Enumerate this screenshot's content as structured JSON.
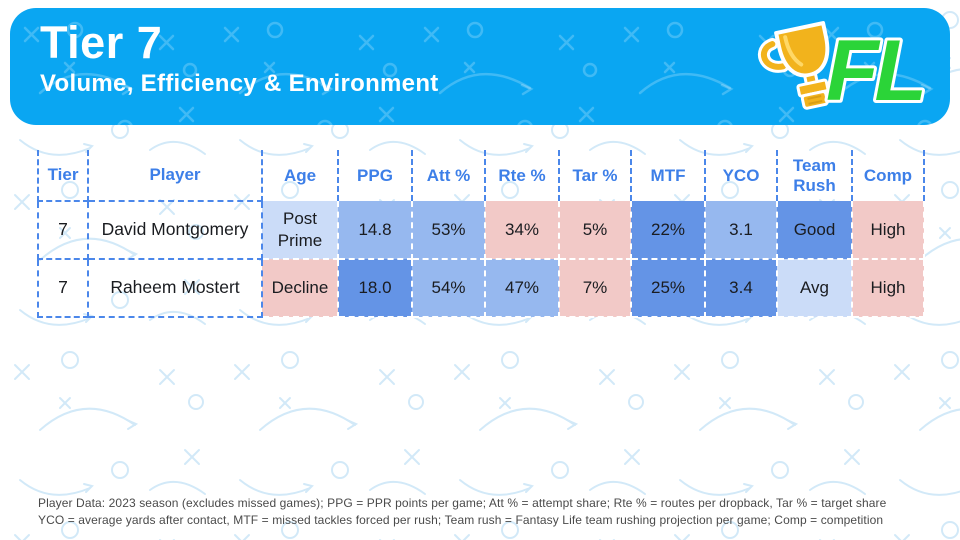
{
  "header": {
    "title": "Tier 7",
    "subtitle": "Volume, Efficiency & Environment",
    "logo_text": "FL"
  },
  "table": {
    "columns": [
      "Tier",
      "Player",
      "Age",
      "PPG",
      "Att %",
      "Rte %",
      "Tar %",
      "MTF",
      "YCO",
      "Team Rush",
      "Comp"
    ],
    "rows": [
      {
        "tier": "7",
        "player": "David Montgomery",
        "cells": [
          {
            "value": "Post Prime",
            "color": "light"
          },
          {
            "value": "14.8",
            "color": "medium"
          },
          {
            "value": "53%",
            "color": "medium"
          },
          {
            "value": "34%",
            "color": "pink"
          },
          {
            "value": "5%",
            "color": "pink"
          },
          {
            "value": "22%",
            "color": "dark"
          },
          {
            "value": "3.1",
            "color": "medium"
          },
          {
            "value": "Good",
            "color": "dark"
          },
          {
            "value": "High",
            "color": "pink"
          }
        ]
      },
      {
        "tier": "7",
        "player": "Raheem Mostert",
        "cells": [
          {
            "value": "Decline",
            "color": "pink"
          },
          {
            "value": "18.0",
            "color": "dark"
          },
          {
            "value": "54%",
            "color": "medium"
          },
          {
            "value": "47%",
            "color": "medium"
          },
          {
            "value": "7%",
            "color": "pink"
          },
          {
            "value": "25%",
            "color": "dark"
          },
          {
            "value": "3.4",
            "color": "dark"
          },
          {
            "value": "Avg",
            "color": "light"
          },
          {
            "value": "High",
            "color": "pink"
          }
        ]
      }
    ]
  },
  "legend": {
    "line1": "Player Data: 2023 season (excludes missed games); PPG = PPR points per game; Att % = attempt share; Rte % = routes per dropback, Tar % = target share",
    "line2": "YCO = average yards after contact, MTF = missed tackles forced per rush; Team rush = Fantasy Life team rushing projection per game; Comp = competition"
  },
  "colors": {
    "banner_bg": "#0aa6f2",
    "header_text": "#3d7fe8",
    "dash_blue": "#4b87ea",
    "cell_light": "#cbdcf8",
    "cell_medium": "#96b8ef",
    "cell_dark": "#6494e6",
    "cell_pink": "#f2c9c7",
    "logo_green": "#2bd438",
    "trophy_gold": "#f2b31c"
  }
}
